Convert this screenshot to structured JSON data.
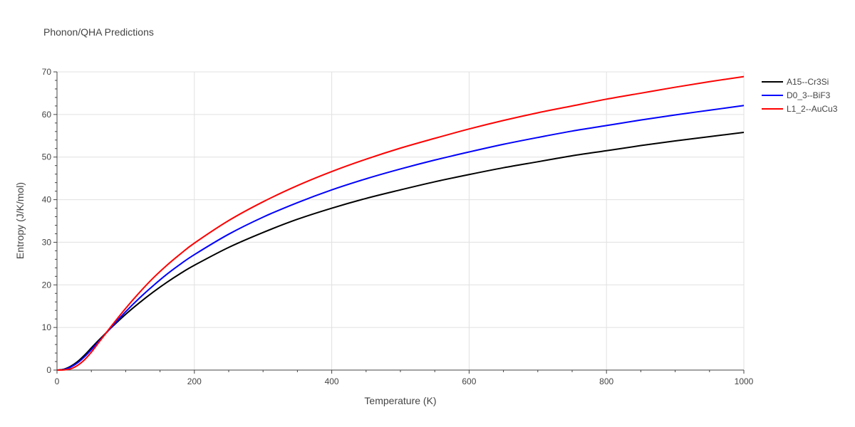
{
  "chart_data": {
    "type": "line",
    "title": "Phonon/QHA Predictions",
    "xlabel": "Temperature (K)",
    "ylabel": "Entropy (J/K/mol)",
    "xlim": [
      0,
      1000
    ],
    "ylim": [
      0,
      70
    ],
    "x_ticks": [
      0,
      200,
      400,
      600,
      800,
      1000
    ],
    "y_ticks": [
      0,
      10,
      20,
      30,
      40,
      50,
      60,
      70
    ],
    "grid": true,
    "legend_position": "top-right",
    "series": [
      {
        "name": "A15--Cr3Si",
        "color": "#000000",
        "x": [
          0,
          10,
          20,
          30,
          40,
          50,
          60,
          70,
          80,
          100,
          120,
          140,
          160,
          180,
          200,
          250,
          300,
          350,
          400,
          450,
          500,
          550,
          600,
          650,
          700,
          750,
          800,
          850,
          900,
          950,
          1000
        ],
        "y": [
          0,
          0.2,
          0.9,
          2.0,
          3.5,
          5.2,
          6.9,
          8.5,
          10.1,
          13.1,
          15.8,
          18.3,
          20.6,
          22.7,
          24.6,
          28.8,
          32.3,
          35.4,
          38.0,
          40.3,
          42.3,
          44.2,
          45.9,
          47.5,
          48.9,
          50.3,
          51.5,
          52.7,
          53.8,
          54.8,
          55.8
        ]
      },
      {
        "name": "D0_3--BiF3",
        "color": "#0000ff",
        "x": [
          0,
          10,
          20,
          30,
          40,
          50,
          60,
          70,
          80,
          100,
          120,
          140,
          160,
          180,
          200,
          250,
          300,
          350,
          400,
          450,
          500,
          550,
          600,
          650,
          700,
          750,
          800,
          850,
          900,
          950,
          1000
        ],
        "y": [
          0,
          0.1,
          0.7,
          1.7,
          3.1,
          4.8,
          6.6,
          8.4,
          10.2,
          13.7,
          16.9,
          19.8,
          22.5,
          24.9,
          27.1,
          31.9,
          35.9,
          39.3,
          42.3,
          44.9,
          47.2,
          49.3,
          51.2,
          53.0,
          54.6,
          56.1,
          57.4,
          58.7,
          59.9,
          61.0,
          62.1
        ]
      },
      {
        "name": "L1_2--AuCu3",
        "color": "#ff0000",
        "x": [
          0,
          10,
          20,
          30,
          40,
          50,
          60,
          70,
          80,
          100,
          120,
          140,
          160,
          180,
          200,
          250,
          300,
          350,
          400,
          450,
          500,
          550,
          600,
          650,
          700,
          750,
          800,
          850,
          900,
          950,
          1000
        ],
        "y": [
          0,
          0.05,
          0.3,
          1.1,
          2.4,
          4.2,
          6.3,
          8.4,
          10.5,
          14.5,
          18.2,
          21.6,
          24.6,
          27.3,
          29.8,
          35.1,
          39.5,
          43.3,
          46.6,
          49.5,
          52.1,
          54.4,
          56.6,
          58.6,
          60.4,
          62.0,
          63.6,
          65.0,
          66.4,
          67.7,
          68.9
        ]
      }
    ]
  }
}
